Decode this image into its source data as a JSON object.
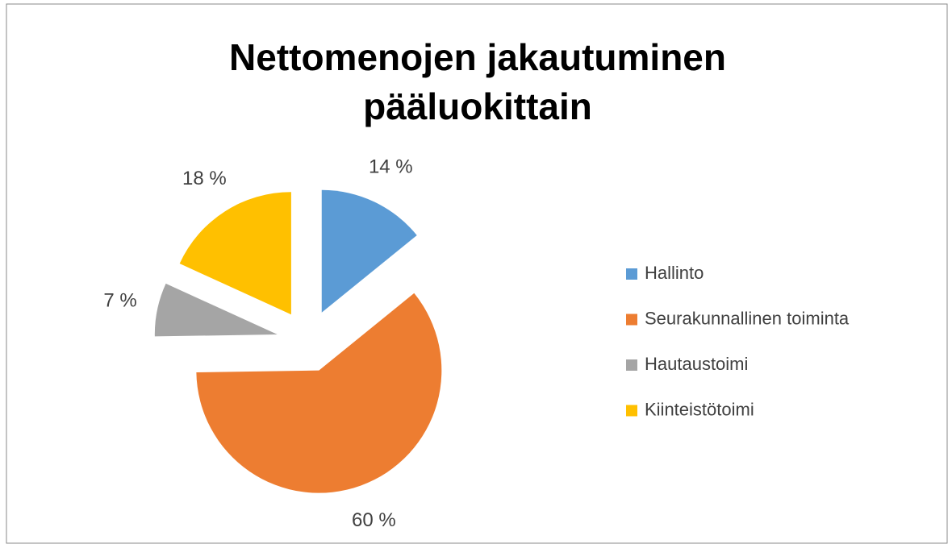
{
  "chart_data": {
    "type": "pie",
    "title": [
      "Nettomenojen jakautuminen",
      "pääluokittain"
    ],
    "categories": [
      "Hallinto",
      "Seurakunnallinen toiminta",
      "Hautaustoimi",
      "Kiinteistötoimi"
    ],
    "values": [
      14,
      60,
      7,
      18
    ],
    "value_labels": [
      "14 %",
      "60 %",
      "7 %",
      "18 %"
    ],
    "colors": [
      "#5b9bd5",
      "#ed7d31",
      "#a5a5a5",
      "#ffc000"
    ],
    "exploded": true,
    "legend": "right"
  }
}
